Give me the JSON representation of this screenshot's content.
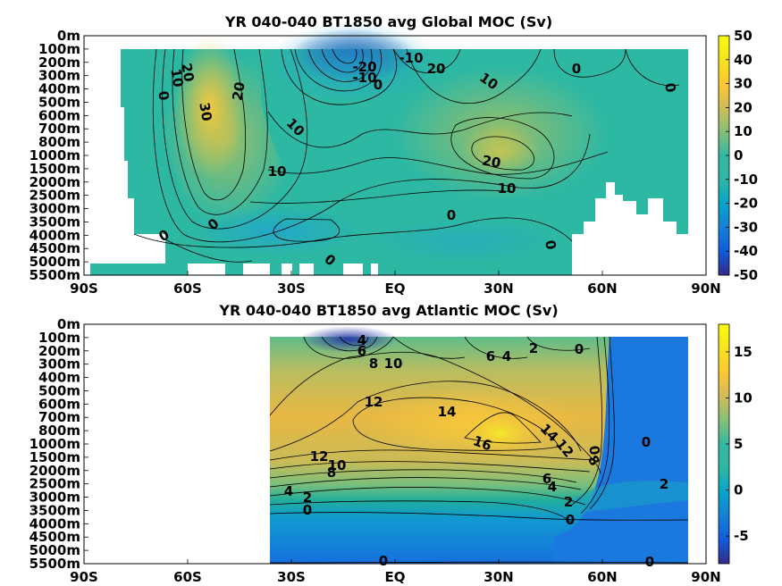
{
  "chart_data": [
    {
      "type": "heatmap",
      "title": "YR 040-040 BT1850 avg  Global MOC (Sv)",
      "x_ticks": [
        "90S",
        "60S",
        "30S",
        "EQ",
        "30N",
        "60N",
        "90N"
      ],
      "x_values": [
        -90,
        -60,
        -30,
        0,
        30,
        60,
        90
      ],
      "y_ticks": [
        "0m",
        "100m",
        "200m",
        "300m",
        "400m",
        "500m",
        "600m",
        "700m",
        "800m",
        "1000m",
        "1500m",
        "2000m",
        "2500m",
        "3000m",
        "3500m",
        "4000m",
        "4500m",
        "5000m",
        "5500m"
      ],
      "colorbar_ticks": [
        50,
        40,
        30,
        20,
        10,
        0,
        -10,
        -20,
        -30,
        -40,
        -50
      ],
      "colorbar_range": [
        -50,
        50
      ],
      "contour_labels": [
        "20",
        "10",
        "0",
        "30",
        "20",
        "10",
        "10",
        "-20",
        "-10",
        "0",
        "-10",
        "20",
        "10",
        "0",
        "0",
        "20",
        "10",
        "0",
        "0",
        "0",
        "0"
      ]
    },
    {
      "type": "heatmap",
      "title": "YR 040-040 BT1850 avg  Atlantic MOC (Sv)",
      "x_ticks": [
        "90S",
        "60S",
        "30S",
        "EQ",
        "30N",
        "60N",
        "90N"
      ],
      "x_values": [
        -90,
        -60,
        -30,
        0,
        30,
        60,
        90
      ],
      "y_ticks": [
        "0m",
        "100m",
        "200m",
        "300m",
        "400m",
        "500m",
        "600m",
        "700m",
        "800m",
        "1000m",
        "1500m",
        "2000m",
        "2500m",
        "3000m",
        "3500m",
        "4000m",
        "4500m",
        "5000m",
        "5500m"
      ],
      "colorbar_ticks": [
        15,
        10,
        5,
        0,
        -5
      ],
      "colorbar_range": [
        -8,
        18
      ],
      "contour_labels": [
        "4",
        "6",
        "8",
        "10",
        "6",
        "4",
        "2",
        "0",
        "12",
        "14",
        "16",
        "14",
        "12",
        "0",
        "1",
        "8",
        "12",
        "10",
        "8",
        "6",
        "4",
        "4",
        "2",
        "2",
        "0",
        "0",
        "0",
        "2",
        "0",
        "0"
      ]
    }
  ]
}
